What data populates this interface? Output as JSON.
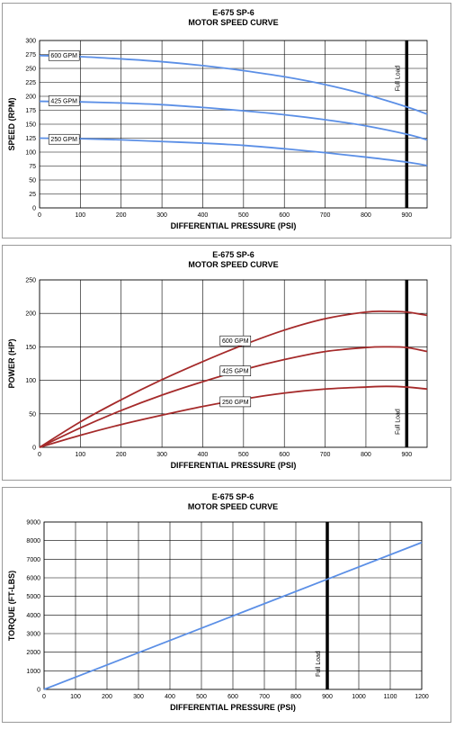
{
  "chart_data": [
    {
      "type": "line",
      "title": "E-675 SP-6",
      "subtitle": "MOTOR SPEED CURVE",
      "xlabel": "DIFFERENTIAL PRESSURE (PSI)",
      "ylabel": "SPEED (RPM)",
      "xlim": [
        0,
        950
      ],
      "ylim": [
        0,
        300
      ],
      "xticks": [
        0,
        100,
        200,
        300,
        400,
        500,
        600,
        700,
        800,
        900
      ],
      "yticks": [
        0,
        25,
        50,
        75,
        100,
        125,
        150,
        175,
        200,
        225,
        250,
        275,
        300
      ],
      "grid": true,
      "color": "#5b8fe6",
      "series": [
        {
          "name": "600 GPM",
          "label_at": [
            60,
            273
          ],
          "x": [
            0,
            100,
            200,
            300,
            400,
            500,
            600,
            700,
            800,
            900,
            950
          ],
          "values": [
            273,
            271,
            267,
            262,
            255,
            246,
            235,
            221,
            203,
            181,
            168
          ]
        },
        {
          "name": "425 GPM",
          "label_at": [
            60,
            192
          ],
          "x": [
            0,
            100,
            200,
            300,
            400,
            500,
            600,
            700,
            800,
            900,
            950
          ],
          "values": [
            191,
            190,
            188,
            185,
            180,
            174,
            167,
            158,
            147,
            132,
            122
          ]
        },
        {
          "name": "250 GPM",
          "label_at": [
            60,
            123
          ],
          "x": [
            0,
            100,
            200,
            300,
            400,
            500,
            600,
            700,
            800,
            900,
            950
          ],
          "values": [
            125,
            124,
            122,
            119,
            116,
            112,
            106,
            99,
            91,
            82,
            76
          ]
        }
      ],
      "vline": {
        "x": 900,
        "label": "Full Load"
      }
    },
    {
      "type": "line",
      "title": "E-675 SP-6",
      "subtitle": "MOTOR SPEED CURVE",
      "xlabel": "DIFFERENTIAL PRESSURE (PSI)",
      "ylabel": "POWER (HP)",
      "xlim": [
        0,
        950
      ],
      "ylim": [
        0,
        250
      ],
      "xticks": [
        0,
        100,
        200,
        300,
        400,
        500,
        600,
        700,
        800,
        900
      ],
      "yticks": [
        0,
        50,
        100,
        150,
        200,
        250
      ],
      "grid": true,
      "color": "#a52a2a",
      "series": [
        {
          "name": "600 GPM",
          "label_at": [
            480,
            159
          ],
          "x": [
            0,
            100,
            200,
            300,
            400,
            500,
            600,
            700,
            800,
            850,
            900,
            950
          ],
          "values": [
            0,
            38,
            71,
            101,
            128,
            153,
            175,
            192,
            202,
            203,
            202,
            197
          ]
        },
        {
          "name": "425 GPM",
          "label_at": [
            480,
            114
          ],
          "x": [
            0,
            100,
            200,
            300,
            400,
            500,
            600,
            700,
            800,
            850,
            900,
            950
          ],
          "values": [
            0,
            29,
            55,
            78,
            98,
            116,
            131,
            143,
            149,
            150,
            149,
            143
          ]
        },
        {
          "name": "250 GPM",
          "label_at": [
            480,
            68
          ],
          "x": [
            0,
            100,
            200,
            300,
            400,
            500,
            600,
            700,
            800,
            850,
            900,
            950
          ],
          "values": [
            0,
            18,
            34,
            48,
            61,
            72,
            81,
            87,
            90,
            91,
            90,
            87
          ]
        }
      ],
      "vline": {
        "x": 900,
        "label": "Full Load"
      }
    },
    {
      "type": "line",
      "title": "E-675 SP-6",
      "subtitle": "MOTOR SPEED CURVE",
      "xlabel": "DIFFERENTIAL PRESSURE (PSI)",
      "ylabel": "TORQUE (FT-LBS)",
      "xlim": [
        0,
        1200
      ],
      "ylim": [
        0,
        9000
      ],
      "xticks": [
        0,
        100,
        200,
        300,
        400,
        500,
        600,
        700,
        800,
        900,
        1000,
        1100,
        1200
      ],
      "yticks": [
        0,
        1000,
        2000,
        3000,
        4000,
        5000,
        6000,
        7000,
        8000,
        9000
      ],
      "grid": true,
      "color": "#5b8fe6",
      "series": [
        {
          "name": "",
          "x": [
            0,
            1200
          ],
          "values": [
            0,
            7900
          ]
        }
      ],
      "vline": {
        "x": 900,
        "label": "Full Load"
      }
    }
  ]
}
